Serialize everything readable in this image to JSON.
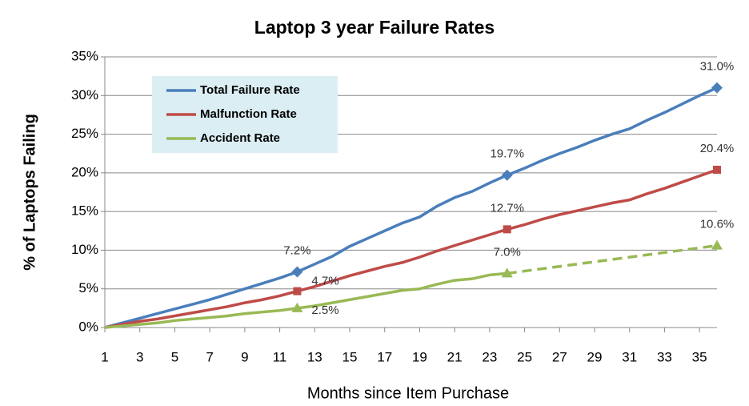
{
  "chart_data": {
    "type": "line",
    "title": "Laptop 3 year Failure Rates",
    "x_label": "Months since Item Purchase",
    "y_label": "% of Laptops Failing",
    "x": [
      1,
      2,
      3,
      4,
      5,
      6,
      7,
      8,
      9,
      10,
      11,
      12,
      13,
      14,
      15,
      16,
      17,
      18,
      19,
      20,
      21,
      22,
      23,
      24,
      25,
      26,
      27,
      28,
      29,
      30,
      31,
      32,
      33,
      34,
      35,
      36
    ],
    "xlim": [
      1,
      36
    ],
    "xticks": [
      1,
      3,
      5,
      7,
      9,
      11,
      13,
      15,
      17,
      19,
      21,
      23,
      25,
      27,
      29,
      31,
      33,
      35
    ],
    "ylim": [
      0,
      35
    ],
    "yticks": [
      {
        "value": 0,
        "label": "0%"
      },
      {
        "value": 5,
        "label": "5%"
      },
      {
        "value": 10,
        "label": "10%"
      },
      {
        "value": 15,
        "label": "15%"
      },
      {
        "value": 20,
        "label": "20%"
      },
      {
        "value": 25,
        "label": "25%"
      },
      {
        "value": 30,
        "label": "30%"
      },
      {
        "value": 35,
        "label": "35%"
      }
    ],
    "grid": true,
    "legend": "upper left",
    "series": [
      {
        "name": "Total Failure Rate",
        "color": "#4a7ebb",
        "marker": "diamond",
        "values": [
          0,
          0.6,
          1.2,
          1.8,
          2.4,
          3.0,
          3.6,
          4.3,
          5.0,
          5.7,
          6.4,
          7.2,
          8.2,
          9.2,
          10.5,
          11.5,
          12.5,
          13.5,
          14.3,
          15.7,
          16.8,
          17.6,
          18.7,
          19.7,
          20.6,
          21.6,
          22.5,
          23.3,
          24.2,
          25.0,
          25.7,
          26.8,
          27.8,
          28.9,
          30.0,
          31.0
        ],
        "value_labels": [
          null,
          null,
          null,
          null,
          null,
          null,
          null,
          null,
          null,
          null,
          null,
          "7.2%",
          null,
          null,
          null,
          null,
          null,
          null,
          null,
          null,
          null,
          null,
          null,
          "19.7%",
          null,
          null,
          null,
          null,
          null,
          null,
          null,
          null,
          null,
          null,
          null,
          "31.0%"
        ]
      },
      {
        "name": "Malfunction Rate",
        "color": "#be4b48",
        "marker": "square",
        "values": [
          0,
          0.4,
          0.8,
          1.1,
          1.5,
          1.9,
          2.3,
          2.7,
          3.2,
          3.6,
          4.1,
          4.7,
          5.3,
          6.0,
          6.7,
          7.3,
          7.9,
          8.4,
          9.1,
          9.9,
          10.6,
          11.3,
          12.0,
          12.7,
          13.3,
          14.0,
          14.6,
          15.1,
          15.6,
          16.1,
          16.5,
          17.3,
          18.0,
          18.8,
          19.6,
          20.4
        ],
        "value_labels": [
          null,
          null,
          null,
          null,
          null,
          null,
          null,
          null,
          null,
          null,
          null,
          "4.7%",
          null,
          null,
          null,
          null,
          null,
          null,
          null,
          null,
          null,
          null,
          null,
          "12.7%",
          null,
          null,
          null,
          null,
          null,
          null,
          null,
          null,
          null,
          null,
          null,
          "20.4%"
        ]
      },
      {
        "name": "Accident Rate",
        "color": "#98b954",
        "marker": "triangle",
        "dashed_after": 24,
        "values": [
          0,
          0.2,
          0.4,
          0.6,
          0.9,
          1.1,
          1.3,
          1.5,
          1.8,
          2.0,
          2.2,
          2.5,
          2.8,
          3.2,
          3.6,
          4.0,
          4.4,
          4.8,
          5.0,
          5.6,
          6.1,
          6.3,
          6.8,
          7.0,
          7.3,
          7.6,
          7.9,
          8.2,
          8.5,
          8.8,
          9.1,
          9.4,
          9.7,
          10.0,
          10.3,
          10.6
        ],
        "value_labels": [
          null,
          null,
          null,
          null,
          null,
          null,
          null,
          null,
          null,
          null,
          null,
          "2.5%",
          null,
          null,
          null,
          null,
          null,
          null,
          null,
          null,
          null,
          null,
          null,
          "7.0%",
          null,
          null,
          null,
          null,
          null,
          null,
          null,
          null,
          null,
          null,
          null,
          "10.6%"
        ]
      }
    ]
  }
}
